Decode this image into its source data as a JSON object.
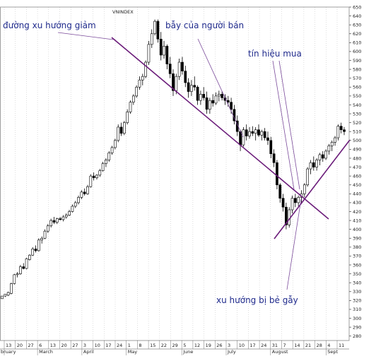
{
  "chart_data": {
    "type": "candlestick",
    "title": "VNINDEX",
    "ylim": [
      275,
      650
    ],
    "yticks": [
      280,
      290,
      300,
      310,
      320,
      330,
      340,
      350,
      360,
      370,
      380,
      390,
      400,
      410,
      420,
      430,
      440,
      450,
      460,
      470,
      480,
      490,
      500,
      510,
      520,
      530,
      540,
      550,
      560,
      570,
      580,
      590,
      600,
      610,
      620,
      630,
      640,
      650
    ],
    "x_day_ticks": [
      "13",
      "20",
      "27",
      "6",
      "13",
      "20",
      "27",
      "3",
      "10",
      "17",
      "24",
      "1",
      "8",
      "15",
      "22",
      "29",
      "5",
      "12",
      "19",
      "26",
      "3",
      "10",
      "17",
      "24",
      "31",
      "7",
      "14",
      "21",
      "28",
      "4",
      "11"
    ],
    "x_month_labels": [
      {
        "label": "bruary",
        "tick_index": 0
      },
      {
        "label": "March",
        "tick_index": 3
      },
      {
        "label": "April",
        "tick_index": 7
      },
      {
        "label": "May",
        "tick_index": 11
      },
      {
        "label": "June",
        "tick_index": 16
      },
      {
        "label": "July",
        "tick_index": 20
      },
      {
        "label": "August",
        "tick_index": 24
      },
      {
        "label": "Sept",
        "tick_index": 29
      }
    ],
    "series": [
      {
        "values": [
          [
            322,
            325,
            322,
            325
          ],
          [
            325,
            327,
            324,
            327
          ],
          [
            326,
            330,
            325,
            329
          ],
          [
            328,
            340,
            327,
            339
          ],
          [
            339,
            350,
            338,
            349
          ],
          [
            349,
            352,
            346,
            350
          ],
          [
            350,
            360,
            349,
            358
          ],
          [
            358,
            362,
            355,
            356
          ],
          [
            356,
            368,
            355,
            367
          ],
          [
            366,
            372,
            365,
            371
          ],
          [
            371,
            380,
            370,
            378
          ],
          [
            378,
            382,
            374,
            376
          ],
          [
            376,
            390,
            375,
            388
          ],
          [
            388,
            392,
            384,
            390
          ],
          [
            390,
            400,
            389,
            398
          ],
          [
            398,
            406,
            396,
            404
          ],
          [
            404,
            412,
            402,
            410
          ],
          [
            410,
            414,
            406,
            408
          ],
          [
            408,
            413,
            406,
            412
          ],
          [
            412,
            414,
            410,
            411
          ],
          [
            411,
            416,
            409,
            414
          ],
          [
            414,
            418,
            412,
            416
          ],
          [
            416,
            422,
            415,
            420
          ],
          [
            420,
            428,
            419,
            426
          ],
          [
            426,
            432,
            424,
            430
          ],
          [
            430,
            438,
            428,
            436
          ],
          [
            436,
            444,
            434,
            442
          ],
          [
            442,
            446,
            438,
            440
          ],
          [
            440,
            450,
            439,
            448
          ],
          [
            448,
            462,
            447,
            460
          ],
          [
            460,
            464,
            455,
            458
          ],
          [
            458,
            462,
            456,
            461
          ],
          [
            461,
            468,
            459,
            466
          ],
          [
            466,
            476,
            465,
            474
          ],
          [
            474,
            480,
            470,
            478
          ],
          [
            478,
            488,
            476,
            486
          ],
          [
            486,
            494,
            484,
            492
          ],
          [
            492,
            502,
            490,
            500
          ],
          [
            500,
            518,
            498,
            515
          ],
          [
            515,
            520,
            505,
            508
          ],
          [
            508,
            522,
            506,
            520
          ],
          [
            520,
            535,
            518,
            532
          ],
          [
            532,
            545,
            530,
            543
          ],
          [
            543,
            552,
            540,
            550
          ],
          [
            550,
            562,
            548,
            560
          ],
          [
            560,
            572,
            557,
            568
          ],
          [
            568,
            575,
            562,
            572
          ],
          [
            572,
            590,
            570,
            588
          ],
          [
            588,
            612,
            585,
            608
          ],
          [
            608,
            625,
            604,
            620
          ],
          [
            620,
            636,
            618,
            634
          ],
          [
            634,
            636,
            610,
            614
          ],
          [
            614,
            622,
            590,
            596
          ],
          [
            596,
            612,
            592,
            606
          ],
          [
            606,
            608,
            580,
            586
          ],
          [
            586,
            594,
            570,
            575
          ],
          [
            575,
            580,
            550,
            556
          ],
          [
            556,
            575,
            552,
            572
          ],
          [
            572,
            592,
            568,
            588
          ],
          [
            588,
            594,
            574,
            578
          ],
          [
            578,
            584,
            560,
            565
          ],
          [
            565,
            570,
            548,
            555
          ],
          [
            555,
            568,
            550,
            562
          ],
          [
            562,
            572,
            556,
            560
          ],
          [
            560,
            562,
            540,
            545
          ],
          [
            545,
            556,
            540,
            552
          ],
          [
            552,
            560,
            545,
            548
          ],
          [
            548,
            555,
            530,
            535
          ],
          [
            535,
            548,
            530,
            545
          ],
          [
            545,
            552,
            538,
            542
          ],
          [
            542,
            554,
            540,
            550
          ],
          [
            550,
            556,
            544,
            552
          ],
          [
            552,
            555,
            545,
            548
          ],
          [
            548,
            552,
            540,
            545
          ],
          [
            545,
            550,
            538,
            543
          ],
          [
            543,
            548,
            530,
            535
          ],
          [
            535,
            540,
            518,
            522
          ],
          [
            522,
            528,
            505,
            510
          ],
          [
            510,
            512,
            488,
            495
          ],
          [
            495,
            515,
            493,
            512
          ],
          [
            512,
            518,
            500,
            505
          ],
          [
            505,
            515,
            502,
            510
          ],
          [
            510,
            516,
            505,
            508
          ],
          [
            508,
            515,
            500,
            512
          ],
          [
            512,
            518,
            504,
            506
          ],
          [
            506,
            512,
            500,
            510
          ],
          [
            510,
            514,
            500,
            503
          ],
          [
            503,
            510,
            495,
            500
          ],
          [
            500,
            504,
            480,
            485
          ],
          [
            485,
            490,
            470,
            475
          ],
          [
            475,
            478,
            445,
            450
          ],
          [
            450,
            452,
            430,
            435
          ],
          [
            435,
            440,
            420,
            425
          ],
          [
            425,
            430,
            400,
            405
          ],
          [
            405,
            425,
            402,
            422
          ],
          [
            422,
            438,
            418,
            435
          ],
          [
            435,
            440,
            425,
            430
          ],
          [
            430,
            438,
            426,
            436
          ],
          [
            436,
            444,
            430,
            440
          ],
          [
            440,
            452,
            436,
            450
          ],
          [
            450,
            470,
            448,
            468
          ],
          [
            468,
            478,
            462,
            475
          ],
          [
            475,
            482,
            466,
            470
          ],
          [
            470,
            480,
            466,
            478
          ],
          [
            478,
            486,
            472,
            484
          ],
          [
            484,
            488,
            476,
            480
          ],
          [
            480,
            490,
            478,
            488
          ],
          [
            488,
            496,
            484,
            494
          ],
          [
            494,
            500,
            488,
            498
          ],
          [
            498,
            505,
            494,
            503
          ],
          [
            503,
            518,
            500,
            516
          ],
          [
            516,
            520,
            508,
            512
          ],
          [
            512,
            515,
            506,
            510
          ]
        ]
      }
    ]
  },
  "annotations": {
    "downtrend": "đường xu hướng giảm",
    "sellers_trap": "bẫy của người bán",
    "buy_signal": "tín hiệu mua",
    "trend_broken": "xu hướng bị bẻ gẫy"
  }
}
